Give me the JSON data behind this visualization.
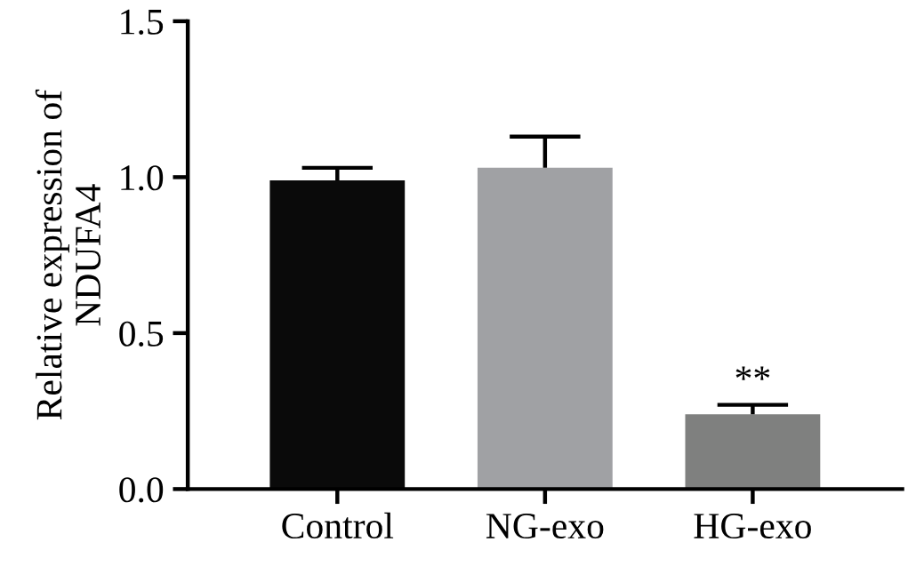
{
  "chart_data": {
    "type": "bar",
    "ylabel": "Relative expression of\nNDUFA4",
    "categories": [
      "Control",
      "NG-exo",
      "HG-exo"
    ],
    "values": [
      0.99,
      1.03,
      0.24
    ],
    "colors": [
      "#0a0a0a",
      "#a0a1a4",
      "#7f807f"
    ],
    "errors": [
      [
        0.99,
        1.03
      ],
      [
        1.03,
        1.13
      ],
      [
        0.24,
        0.27
      ]
    ],
    "ylim": [
      0,
      1.5
    ],
    "yticks": [
      {
        "value": 0,
        "label": "0.0"
      },
      {
        "value": 0.5,
        "label": "0.5"
      },
      {
        "value": 1,
        "label": "1.0"
      },
      {
        "value": 1.5,
        "label": "1.5"
      }
    ],
    "annotations": [
      {
        "text": "**",
        "x": "HG-exo",
        "y": 0.29
      }
    ],
    "grid": false
  }
}
